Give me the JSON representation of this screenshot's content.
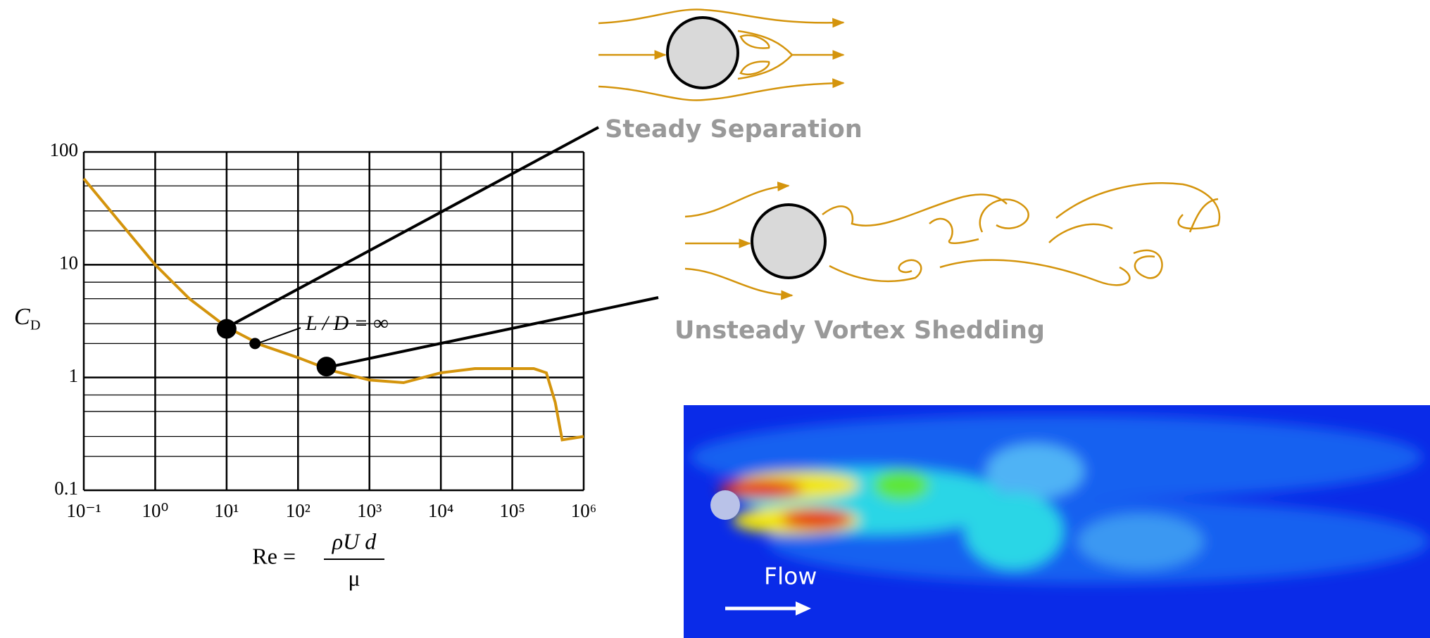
{
  "chart_data": {
    "type": "line",
    "xscale": "log",
    "yscale": "log",
    "ylabel": "C",
    "ylabel_sub": "D",
    "xlabel": "Re =",
    "xlabel_numerator": "ρU d",
    "xlabel_denominator": "μ",
    "annotation": "L / D = ∞",
    "xlim": [
      0.1,
      1000000
    ],
    "ylim": [
      0.1,
      100
    ],
    "xticks": [
      {
        "value": 0.1,
        "label": "10⁻¹"
      },
      {
        "value": 1,
        "label": "10⁰"
      },
      {
        "value": 10,
        "label": "10¹"
      },
      {
        "value": 100,
        "label": "10²"
      },
      {
        "value": 1000,
        "label": "10³"
      },
      {
        "value": 10000,
        "label": "10⁴"
      },
      {
        "value": 100000,
        "label": "10⁵"
      },
      {
        "value": 1000000,
        "label": "10⁶"
      }
    ],
    "yticks": [
      0.1,
      1,
      10,
      100
    ],
    "yminor": [
      0.2,
      0.3,
      0.5,
      0.7,
      2,
      3,
      5,
      7,
      20,
      30,
      50,
      70
    ],
    "grid": true,
    "series": [
      {
        "color": "#d4940c",
        "x": [
          0.1,
          0.3,
          1,
          3,
          10,
          30,
          100,
          300,
          1000,
          3000,
          10000,
          30000,
          100000,
          200000,
          300000,
          400000,
          500000,
          1000000
        ],
        "values": [
          58,
          25,
          10,
          5,
          2.8,
          1.95,
          1.5,
          1.15,
          0.95,
          0.9,
          1.1,
          1.2,
          1.2,
          1.2,
          1.1,
          0.6,
          0.28,
          0.3
        ]
      }
    ],
    "points": {
      "color": "#000000",
      "x": [
        10,
        25,
        250
      ],
      "values": [
        2.7,
        2,
        1.25
      ]
    }
  },
  "diagrams": {
    "steady": "Steady Separation",
    "unsteady": "Unsteady Vortex Shedding",
    "flow": "Flow"
  }
}
